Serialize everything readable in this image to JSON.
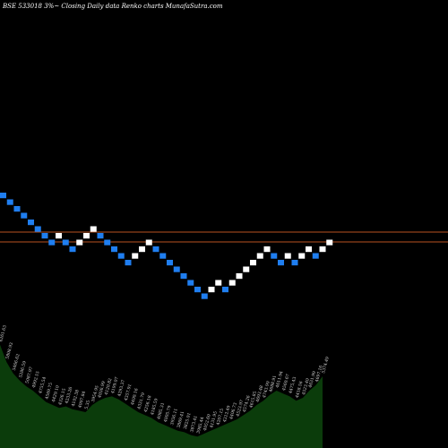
{
  "chart_data": {
    "type": "renko",
    "title": "BSE 533018  3%~  Closing Daily data  Renko  charts MunafaSutra.com",
    "brick_directions": [
      -1,
      -1,
      -1,
      -1,
      -1,
      -1,
      -1,
      -1,
      1,
      -1,
      -1,
      1,
      1,
      1,
      -1,
      -1,
      -1,
      -1,
      -1,
      1,
      1,
      1,
      -1,
      -1,
      -1,
      -1,
      -1,
      -1,
      -1,
      -1,
      1,
      1,
      -1,
      1,
      1,
      1,
      1,
      1,
      1,
      -1,
      -1,
      1,
      -1,
      1,
      1,
      -1,
      1,
      1
    ],
    "colors": {
      "up": "#ffffff",
      "down": "#1f7ef0",
      "level_line": "#b8521f",
      "volume_fill": "#0b3c0b"
    },
    "levels": [
      "upper",
      "lower"
    ],
    "volume_labels": [
      "6261.63",
      "5808.93",
      "5466.62",
      "5286.59",
      "5087.97",
      "4992.15",
      "4755.54",
      "4569.75",
      "4429.10",
      "4326.15",
      "4233.26",
      "4102.38",
      "4007.84",
      "5.35",
      "3954.95",
      "4036.99",
      "4120.82",
      "4199.07",
      "4293.37",
      "4357.91",
      "4400.16",
      "4331.79",
      "4256.18",
      "4185.59",
      "4085.31",
      "4005.79",
      "3936.11",
      "3869.41",
      "3825.01",
      "3873.41",
      "3985.44",
      "4052.60",
      "4131.95",
      "4207.15",
      "4312.49",
      "4406.73",
      "4523.97",
      "4574.26",
      "4615.85",
      "4693.48",
      "4743.90",
      "4688.91",
      "4611.94",
      "4560.67",
      "4475.43",
      "4418.56",
      "4523.40",
      "4631.99",
      "4697.16",
      "5374.49"
    ],
    "volume_levels": [
      0.72,
      0.6,
      0.52,
      0.47,
      0.43,
      0.4,
      0.36,
      0.32,
      0.3,
      0.28,
      0.29,
      0.27,
      0.26,
      0.25,
      0.3,
      0.33,
      0.35,
      0.36,
      0.34,
      0.31,
      0.28,
      0.25,
      0.23,
      0.21,
      0.18,
      0.16,
      0.14,
      0.12,
      0.11,
      0.09,
      0.08,
      0.1,
      0.12,
      0.14,
      0.16,
      0.18,
      0.2,
      0.23,
      0.26,
      0.3,
      0.33,
      0.37,
      0.4,
      0.38,
      0.36,
      0.33,
      0.35,
      0.4,
      0.44,
      0.5
    ]
  }
}
